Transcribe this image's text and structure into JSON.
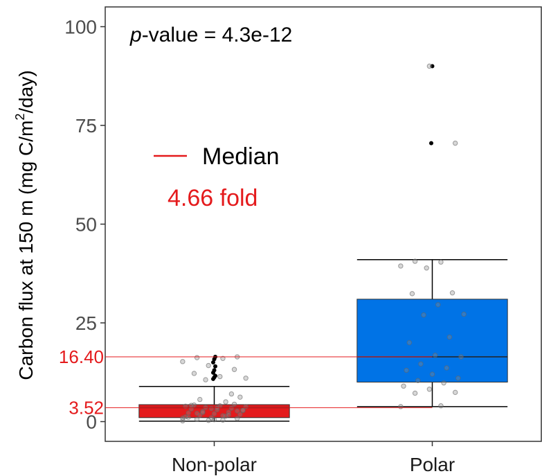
{
  "chart_data": {
    "type": "box",
    "ylabel_main": "Carbon flux at 150 m (mg C/m",
    "ylabel_sup": "2",
    "ylabel_tail": "/day)",
    "ylim": [
      -5,
      105
    ],
    "yticks": [
      0,
      25,
      50,
      75,
      100
    ],
    "ytick_labels": [
      "0",
      "25",
      "50",
      "75",
      "100"
    ],
    "categories": [
      "Non-polar",
      "Polar"
    ],
    "annotation": {
      "p_label": "p",
      "p_rest": "-value = 4.3e-12"
    },
    "legend": {
      "median_label": "Median",
      "fold_label": "4.66 fold",
      "median_color": "#e41a1c"
    },
    "reference_lines": [
      {
        "label": "16.40",
        "value": 16.4
      },
      {
        "label": "3.52",
        "value": 3.52
      }
    ],
    "ref_color": "#e41a1c",
    "boxes": [
      {
        "category": "Non-polar",
        "color": "#e41a1c",
        "q1": 1.0,
        "median": 3.52,
        "q3": 4.3,
        "whisker_low": 0.1,
        "whisker_high": 8.9,
        "outliers": [
          10.8,
          11.2,
          11.6,
          12.4,
          13.0,
          14.0,
          15.0,
          15.8,
          16.4
        ],
        "points": [
          0.2,
          0.4,
          0.6,
          0.8,
          1.0,
          1.2,
          1.4,
          1.6,
          1.8,
          2.0,
          2.2,
          2.4,
          2.6,
          2.8,
          3.0,
          3.2,
          3.4,
          3.6,
          3.8,
          4.0,
          4.2,
          4.4,
          0.3,
          0.9,
          1.5,
          2.1,
          2.7,
          3.3,
          3.9,
          5.0,
          5.6,
          6.2,
          0.5,
          1.1,
          1.7,
          2.3,
          2.9,
          3.5,
          4.1,
          7.0,
          10.6,
          11.0,
          11.4,
          12.2,
          13.2,
          14.2,
          15.2,
          16.0,
          16.2,
          16.4
        ]
      },
      {
        "category": "Polar",
        "color": "#0073e6",
        "q1": 10.0,
        "median": 16.4,
        "q3": 31.0,
        "whisker_low": 3.8,
        "whisker_high": 41.0,
        "outliers": [
          70.5,
          90.0
        ],
        "points": [
          3.8,
          4.0,
          7.2,
          7.4,
          8.2,
          9.0,
          9.8,
          10.4,
          11.0,
          12.0,
          13.0,
          13.6,
          14.6,
          16.4,
          16.8,
          20.0,
          21.4,
          27.0,
          27.2,
          29.6,
          32.4,
          32.6,
          38.9,
          39.4,
          40.4,
          40.6,
          70.5,
          90.0
        ]
      }
    ]
  }
}
